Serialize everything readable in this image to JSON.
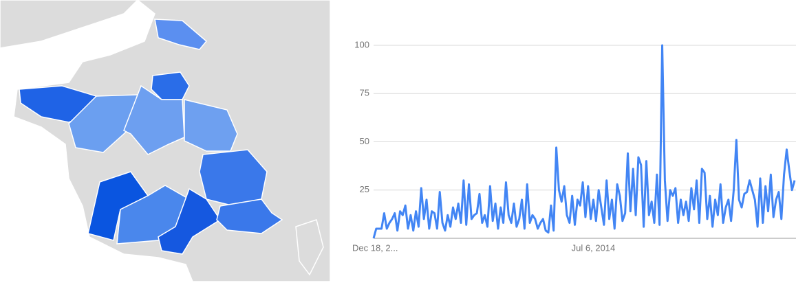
{
  "chart_data": {
    "type": "line",
    "categories": [
      "Dec 18, 2...",
      null,
      null,
      null,
      null,
      null,
      null,
      null,
      null,
      null,
      null,
      null,
      null,
      null,
      null,
      null,
      null,
      null,
      null,
      null,
      null,
      null,
      null,
      null,
      null,
      null,
      null,
      null,
      null,
      null,
      null,
      null,
      null,
      null,
      null,
      null,
      null,
      null,
      null,
      null,
      null,
      null,
      null,
      null,
      null,
      null,
      null,
      null,
      null,
      null,
      null,
      null,
      null,
      null,
      null,
      null,
      null,
      null,
      null,
      null,
      null,
      null,
      null,
      null,
      null,
      null,
      null,
      null,
      null,
      null,
      null,
      null,
      null,
      null,
      null,
      null,
      null,
      null,
      null,
      null,
      null,
      null,
      null,
      "Jul 6, 2014",
      null,
      null,
      null,
      null,
      null,
      null,
      null,
      null,
      null,
      null,
      null,
      null,
      null,
      null,
      null,
      null,
      null,
      null,
      null,
      null,
      null,
      null,
      null,
      null,
      null,
      null,
      null,
      null,
      null,
      null,
      null,
      null,
      null,
      null,
      null,
      null,
      null,
      null,
      null,
      null,
      null,
      null,
      null,
      null,
      null,
      null,
      null,
      null,
      null,
      null,
      null,
      null,
      null,
      null,
      null,
      null,
      null,
      null,
      null,
      null,
      null,
      null,
      null,
      null,
      null,
      null,
      null,
      null,
      null,
      null,
      null,
      null,
      null,
      null,
      null,
      null
    ],
    "series": [
      {
        "color": "#4285f4",
        "values": [
          0,
          5,
          5,
          5,
          13,
          5,
          8,
          10,
          13,
          4,
          14,
          12,
          17,
          5,
          12,
          4,
          14,
          6,
          26,
          10,
          20,
          5,
          14,
          13,
          5,
          24,
          8,
          4,
          12,
          6,
          16,
          10,
          18,
          8,
          30,
          7,
          28,
          10,
          12,
          13,
          23,
          8,
          12,
          6,
          27,
          9,
          18,
          5,
          16,
          8,
          29,
          12,
          8,
          18,
          6,
          10,
          20,
          5,
          28,
          8,
          12,
          10,
          5,
          8,
          10,
          4,
          3,
          17,
          4,
          47,
          25,
          19,
          27,
          12,
          8,
          22,
          7,
          20,
          17,
          29,
          11,
          27,
          10,
          20,
          9,
          25,
          16,
          7,
          30,
          10,
          20,
          5,
          28,
          22,
          9,
          13,
          44,
          14,
          36,
          12,
          42,
          38,
          6,
          40,
          12,
          19,
          8,
          33,
          7,
          100,
          30,
          9,
          25,
          22,
          26,
          8,
          20,
          12,
          19,
          9,
          26,
          15,
          30,
          8,
          36,
          34,
          10,
          22,
          6,
          20,
          12,
          28,
          8,
          16,
          20,
          9,
          25,
          51,
          20,
          16,
          23,
          24,
          30,
          25,
          20,
          6,
          31,
          8,
          27,
          14,
          33,
          11,
          20,
          24,
          10,
          33,
          46,
          35,
          25,
          30
        ]
      }
    ],
    "ylim": [
      0,
      100
    ],
    "yticks": [
      25,
      50,
      75,
      100
    ],
    "grid": true
  }
}
